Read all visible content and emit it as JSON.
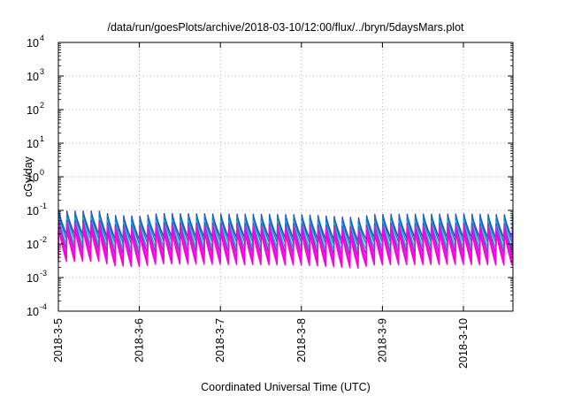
{
  "chart_data": {
    "type": "line",
    "title": "/data/run/goesPlots/archive/2018-03-10/12:00/flux/../bryn/5daysMars.plot",
    "xlabel": "Coordinated Universal Time (UTC)",
    "ylabel": "cGy/day",
    "y_scale": "log",
    "ylim": [
      0.0001,
      10000
    ],
    "xlim": [
      "2018-03-05 00:00",
      "2018-03-10 13:00"
    ],
    "grid": true,
    "x_ticks": [
      "2018-3-5",
      "2018-3-6",
      "2018-3-7",
      "2018-3-8",
      "2018-3-9",
      "2018-3-10"
    ],
    "y_ticks": [
      {
        "base": "10",
        "exp": "-4",
        "value": 0.0001
      },
      {
        "base": "10",
        "exp": "-3",
        "value": 0.001
      },
      {
        "base": "10",
        "exp": "-2",
        "value": 0.01
      },
      {
        "base": "10",
        "exp": "-1",
        "value": 0.1
      },
      {
        "base": "10",
        "exp": "0",
        "value": 1
      },
      {
        "base": "10",
        "exp": "1",
        "value": 10
      },
      {
        "base": "10",
        "exp": "2",
        "value": 100
      },
      {
        "base": "10",
        "exp": "3",
        "value": 1000
      },
      {
        "base": "10",
        "exp": "4",
        "value": 10000
      }
    ],
    "pattern": {
      "cycle_hours": 2.4,
      "peak_hour": 0.15,
      "series_levels": [
        {
          "peak": 0.095,
          "trough": 0.019,
          "color": "#2040e0"
        },
        {
          "peak": 0.08,
          "trough": 0.014,
          "color": "#1878c8"
        },
        {
          "peak": 0.06,
          "trough": 0.0095,
          "color": "#00c8c0"
        },
        {
          "peak": 0.05,
          "trough": 0.0068,
          "color": "#8030c0"
        },
        {
          "peak": 0.042,
          "trough": 0.005,
          "color": "#e020e0"
        },
        {
          "peak": 0.036,
          "trough": 0.0038,
          "color": "#ff00ff"
        },
        {
          "peak": 0.03,
          "trough": 0.003,
          "color": "#ff00d0"
        }
      ],
      "envelope_hours": [
        0,
        12,
        16,
        24,
        30,
        48,
        72,
        90,
        92,
        96,
        120,
        132
      ],
      "envelope_factor": [
        1.0,
        1.0,
        0.75,
        0.7,
        0.85,
        0.82,
        0.78,
        0.62,
        0.78,
        0.8,
        0.82,
        0.78
      ]
    }
  }
}
